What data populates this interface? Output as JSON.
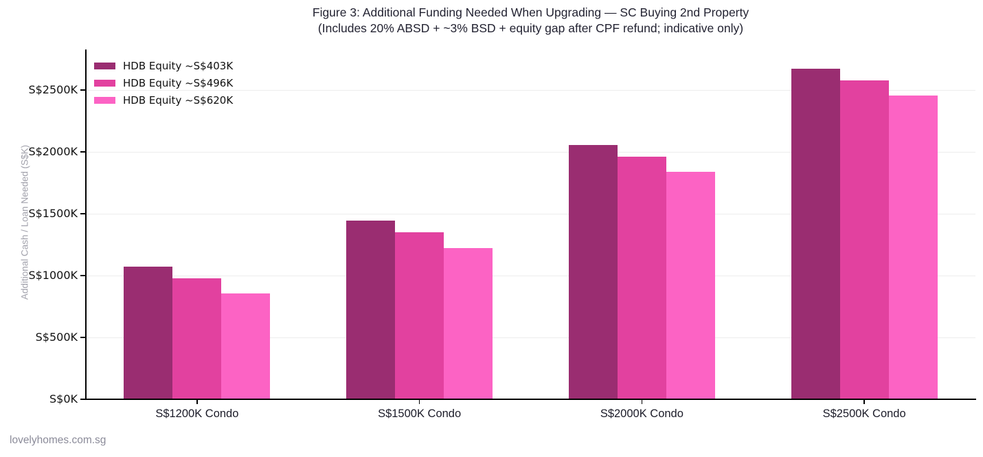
{
  "watermark": "lovelyhomes.com.sg",
  "chart_data": {
    "type": "bar",
    "title": "Figure 3: Additional Funding Needed When Upgrading — SC Buying 2nd Property",
    "subtitle": "(Includes 20% ABSD + ~3% BSD + equity gap after CPF refund; indicative only)",
    "categories": [
      "S$1200K Condo",
      "S$1500K Condo",
      "S$2000K Condo",
      "S$2500K Condo"
    ],
    "series": [
      {
        "name": "HDB Equity ~S$403K",
        "color": "#9a2d71",
        "values": [
          1073,
          1442,
          2057,
          2672
        ]
      },
      {
        "name": "HDB Equity ~S$496K",
        "color": "#e2419f",
        "values": [
          980,
          1349,
          1964,
          2579
        ]
      },
      {
        "name": "HDB Equity ~S$620K",
        "color": "#fc63c4",
        "values": [
          856,
          1225,
          1840,
          2455
        ]
      }
    ],
    "xlabel": "",
    "ylabel": "Additional Cash / Loan Needed (S$K)",
    "yticks": [
      {
        "value": 0,
        "label": "S$0K"
      },
      {
        "value": 500,
        "label": "S$500K"
      },
      {
        "value": 1000,
        "label": "S$1000K"
      },
      {
        "value": 1500,
        "label": "S$1500K"
      },
      {
        "value": 2000,
        "label": "S$2000K"
      },
      {
        "value": 2500,
        "label": "S$2500K"
      }
    ],
    "ylim": [
      0,
      2828
    ],
    "grid": true,
    "legend_position": "upper-left"
  }
}
